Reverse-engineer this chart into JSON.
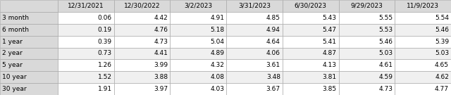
{
  "columns": [
    "12/31/2021",
    "12/30/2022",
    "3/2/2023",
    "3/31/2023",
    "6/30/2023",
    "9/29/2023",
    "11/9/2023"
  ],
  "rows": [
    "3 month",
    "6 month",
    "1 year",
    "2 year",
    "5 year",
    "10 year",
    "30 year"
  ],
  "data": [
    [
      0.06,
      4.42,
      4.91,
      4.85,
      5.43,
      5.55,
      5.54
    ],
    [
      0.19,
      4.76,
      5.18,
      4.94,
      5.47,
      5.53,
      5.46
    ],
    [
      0.39,
      4.73,
      5.04,
      4.64,
      5.41,
      5.46,
      5.39
    ],
    [
      0.73,
      4.41,
      4.89,
      4.06,
      4.87,
      5.03,
      5.03
    ],
    [
      1.26,
      3.99,
      4.32,
      3.61,
      4.13,
      4.61,
      4.65
    ],
    [
      1.52,
      3.88,
      4.08,
      3.48,
      3.81,
      4.59,
      4.62
    ],
    [
      1.91,
      3.97,
      4.03,
      3.67,
      3.85,
      4.73,
      4.77
    ]
  ],
  "header_bg": "#d9d9d9",
  "row_label_bg": "#d9d9d9",
  "even_row_bg": "#ffffff",
  "odd_row_bg": "#f0f0f0",
  "border_color": "#a0a0a0",
  "text_color": "#000000",
  "font_size": 6.5
}
